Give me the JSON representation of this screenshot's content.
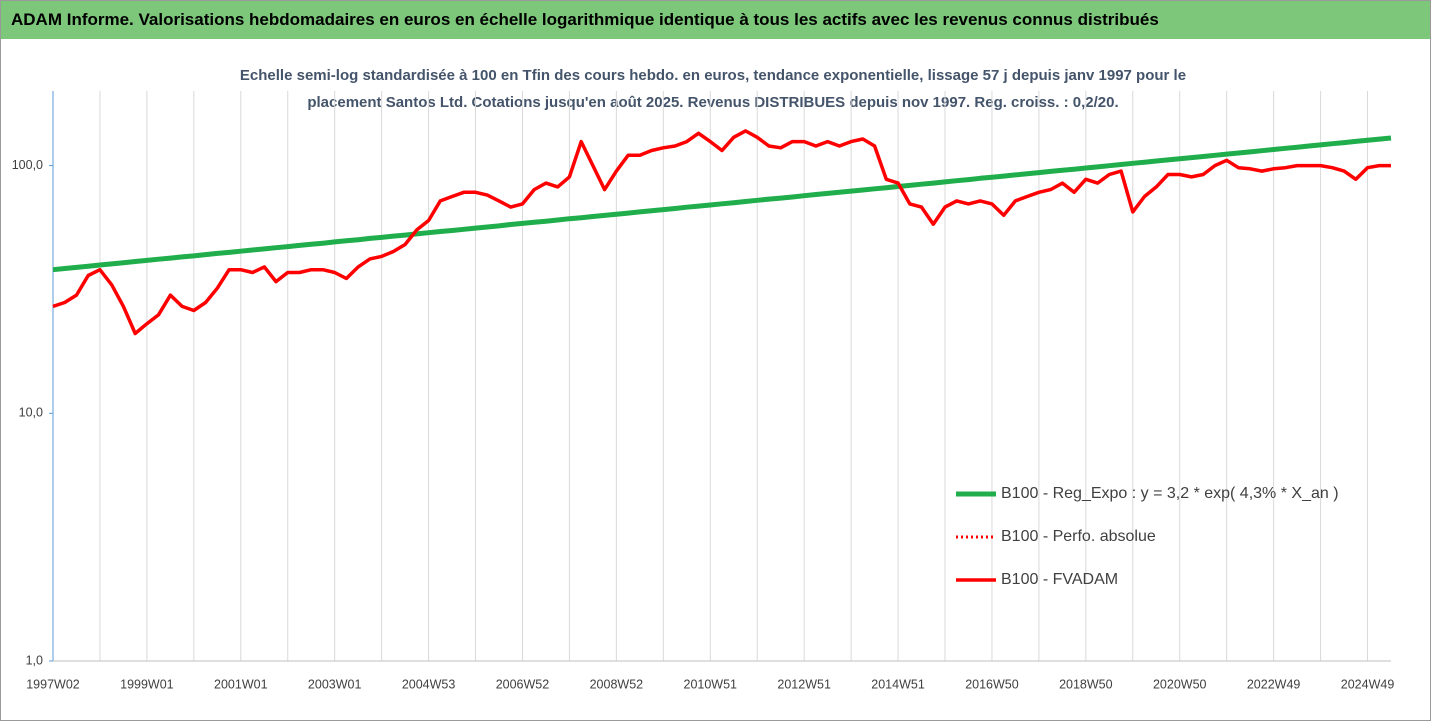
{
  "header": {
    "title": "ADAM Informe. Valorisations hebdomadaires en euros en échelle logarithmique identique à tous les actifs avec les revenus connus distribués"
  },
  "chart_data": {
    "type": "line",
    "title": [
      "Echelle semi-log standardisée à 100 en Tfin des cours hebdo. en euros, tendance exponentielle, lissage 57 j depuis janv 1997 pour le",
      "placement Santos Ltd. Cotations jusqu'en août 2025. Revenus DISTRIBUES depuis nov 1997. Reg. croiss. : 0,2/20."
    ],
    "categories": [
      "1997W02",
      null,
      null,
      null,
      null,
      null,
      null,
      null,
      "1999W01",
      null,
      null,
      null,
      null,
      null,
      null,
      null,
      "2001W01",
      null,
      null,
      null,
      null,
      null,
      null,
      null,
      "2003W01",
      null,
      null,
      null,
      null,
      null,
      null,
      null,
      "2004W53",
      null,
      null,
      null,
      null,
      null,
      null,
      null,
      "2006W52",
      null,
      null,
      null,
      null,
      null,
      null,
      null,
      "2008W52",
      null,
      null,
      null,
      null,
      null,
      null,
      null,
      "2010W51",
      null,
      null,
      null,
      null,
      null,
      null,
      null,
      "2012W51",
      null,
      null,
      null,
      null,
      null,
      null,
      null,
      "2014W51",
      null,
      null,
      null,
      null,
      null,
      null,
      null,
      "2016W50",
      null,
      null,
      null,
      null,
      null,
      null,
      null,
      "2018W50",
      null,
      null,
      null,
      null,
      null,
      null,
      null,
      "2020W50",
      null,
      null,
      null,
      null,
      null,
      null,
      null,
      "2022W49",
      null,
      null,
      null,
      null,
      null,
      null,
      null,
      "2024W49",
      null,
      null
    ],
    "series": [
      {
        "name": "B100 - Reg_Expo : y = 3,2 * exp( 4,3% *  X_an )",
        "color": "#1fae4b",
        "line_style": "solid",
        "values": [
          38.0,
          38.4,
          38.8,
          39.2,
          39.7,
          40.1,
          40.5,
          41.0,
          41.4,
          41.9,
          42.3,
          42.8,
          43.2,
          43.7,
          44.2,
          44.6,
          45.1,
          45.6,
          46.1,
          46.6,
          47.1,
          47.6,
          48.1,
          48.6,
          49.2,
          49.7,
          50.2,
          50.8,
          51.3,
          51.9,
          52.4,
          53.0,
          53.6,
          54.2,
          54.7,
          55.3,
          55.9,
          56.5,
          57.1,
          57.8,
          58.4,
          59.0,
          59.6,
          60.3,
          61.0,
          61.6,
          62.3,
          62.9,
          63.6,
          64.3,
          65.0,
          65.7,
          66.4,
          67.1,
          67.9,
          68.6,
          69.3,
          70.1,
          70.8,
          71.6,
          72.4,
          73.2,
          73.9,
          74.7,
          75.6,
          76.4,
          77.2,
          78.0,
          78.9,
          79.7,
          80.6,
          81.4,
          82.3,
          83.2,
          84.1,
          85.0,
          85.9,
          86.9,
          87.8,
          88.8,
          89.7,
          90.7,
          91.7,
          92.6,
          93.7,
          94.7,
          95.7,
          96.7,
          97.8,
          98.8,
          99.9,
          101.0,
          102.1,
          103.2,
          104.3,
          105.4,
          106.5,
          107.7,
          108.8,
          110.0,
          111.2,
          112.4,
          113.6,
          114.8,
          116.1,
          117.4,
          118.6,
          119.9,
          121.2,
          122.5,
          123.8,
          125.2,
          126.5,
          127.9,
          129.2
        ]
      },
      {
        "name": "B100 - Perfo. absolue",
        "color": "#ff0000",
        "line_style": "dotted",
        "values": [
          27,
          28,
          30,
          36,
          38,
          33,
          27,
          21,
          23,
          25,
          30,
          27,
          26,
          28,
          32,
          38,
          38,
          37,
          39,
          34,
          37,
          37,
          38,
          38,
          37,
          35,
          39,
          42,
          43,
          45,
          48,
          55,
          60,
          72,
          75,
          78,
          78,
          76,
          72,
          68,
          70,
          80,
          85,
          82,
          90,
          125,
          100,
          80,
          95,
          110,
          110,
          115,
          118,
          120,
          125,
          135,
          125,
          115,
          130,
          138,
          130,
          120,
          118,
          125,
          125,
          120,
          125,
          120,
          125,
          128,
          120,
          88,
          85,
          70,
          68,
          58,
          68,
          72,
          70,
          72,
          70,
          63,
          72,
          75,
          78,
          80,
          85,
          78,
          88,
          85,
          92,
          95,
          65,
          75,
          82,
          92,
          92,
          90,
          92,
          100,
          105,
          98,
          97,
          95,
          97,
          98,
          100,
          100,
          100,
          98,
          95,
          88,
          98,
          100,
          100
        ]
      },
      {
        "name": "B100 - FVADAM",
        "color": "#ff0000",
        "line_style": "solid",
        "values": [
          27,
          28,
          30,
          36,
          38,
          33,
          27,
          21,
          23,
          25,
          30,
          27,
          26,
          28,
          32,
          38,
          38,
          37,
          39,
          34,
          37,
          37,
          38,
          38,
          37,
          35,
          39,
          42,
          43,
          45,
          48,
          55,
          60,
          72,
          75,
          78,
          78,
          76,
          72,
          68,
          70,
          80,
          85,
          82,
          90,
          125,
          100,
          80,
          95,
          110,
          110,
          115,
          118,
          120,
          125,
          135,
          125,
          115,
          130,
          138,
          130,
          120,
          118,
          125,
          125,
          120,
          125,
          120,
          125,
          128,
          120,
          88,
          85,
          70,
          68,
          58,
          68,
          72,
          70,
          72,
          70,
          63,
          72,
          75,
          78,
          80,
          85,
          78,
          88,
          85,
          92,
          95,
          65,
          75,
          82,
          92,
          92,
          90,
          92,
          100,
          105,
          98,
          97,
          95,
          97,
          98,
          100,
          100,
          100,
          98,
          95,
          88,
          98,
          100,
          100
        ]
      }
    ],
    "ylim": [
      1,
      200
    ],
    "yticks": [
      {
        "value": 1,
        "label": "1,0"
      },
      {
        "value": 10,
        "label": "10,0"
      },
      {
        "value": 100,
        "label": "100,0"
      }
    ],
    "log_scale": true,
    "grid": "x",
    "legend_position": "right"
  }
}
